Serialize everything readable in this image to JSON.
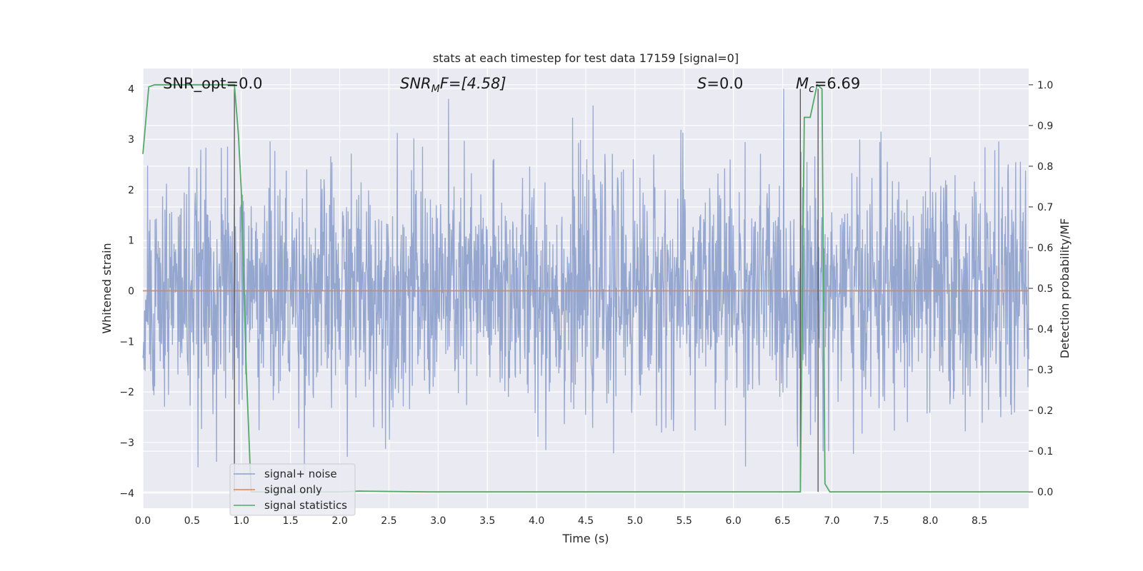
{
  "chart_data": {
    "type": "line",
    "title": "stats at each timestep for test data 17159 [signal=0]",
    "xlabel": "Time (s)",
    "ylabel": "Whitened strain",
    "y2label": "Detection probability/MF",
    "xlim": [
      0.0,
      9.0
    ],
    "ylim": [
      -4.3,
      4.4
    ],
    "y2lim": [
      -0.04,
      1.04
    ],
    "xticks": [
      "0.0",
      "0.5",
      "1.0",
      "1.5",
      "2.0",
      "2.5",
      "3.0",
      "3.5",
      "4.0",
      "4.5",
      "5.0",
      "5.5",
      "6.0",
      "6.5",
      "7.0",
      "7.5",
      "8.0",
      "8.5"
    ],
    "yticks": [
      "4",
      "3",
      "2",
      "1",
      "0",
      "−1",
      "−2",
      "−3",
      "−4"
    ],
    "y2ticks": [
      "1.0",
      "0.9",
      "0.8",
      "0.7",
      "0.6",
      "0.5",
      "0.4",
      "0.3",
      "0.2",
      "0.1",
      "0.0"
    ],
    "grid": true,
    "legend_position": "lower-left",
    "colors": {
      "noise": "#8c9fcb",
      "signal": "#dd8452",
      "stats": "#55a868",
      "marker": "#555555",
      "plot_bg": "#eaeaf2"
    },
    "annotations": {
      "snr_opt": "SNR_opt=0.0",
      "snr_mf_main": "SNR",
      "snr_mf_sub": "M",
      "snr_mf_rest": "F=[4.58]",
      "s_main": "S",
      "s_rest": "=0.0",
      "mc_main": "M",
      "mc_sub": "c",
      "mc_rest": "=6.69"
    },
    "series": [
      {
        "name": "signal+ noise",
        "description_values": "noise samples with amplitude mostly within ±2.5, peaks near ±3.5",
        "amplitude_std": 1.15,
        "x_range": [
          0.0,
          9.0
        ],
        "n_points": 2250
      },
      {
        "name": "signal only",
        "x": [
          0.0,
          9.0
        ],
        "y": [
          0.0,
          0.0
        ]
      },
      {
        "name": "signal statistics",
        "axis": "right",
        "x": [
          0.0,
          0.06,
          0.12,
          0.5,
          0.93,
          0.97,
          1.0,
          1.05,
          1.1,
          1.2,
          2.0,
          2.2,
          2.9,
          3.0,
          6.68,
          6.72,
          6.78,
          6.85,
          6.9,
          6.93,
          6.98,
          7.0,
          9.0
        ],
        "y": [
          0.83,
          0.995,
          1.0,
          1.0,
          1.0,
          0.88,
          0.74,
          0.3,
          0.0,
          0.0,
          0.0,
          0.002,
          0.0,
          0.0,
          0.0,
          0.92,
          0.92,
          1.0,
          0.99,
          0.02,
          0.0,
          0.0,
          0.0
        ]
      }
    ],
    "vlines": [
      0.93,
      6.68,
      6.86
    ],
    "legend": [
      "signal+ noise",
      "signal only",
      "signal statistics"
    ]
  }
}
